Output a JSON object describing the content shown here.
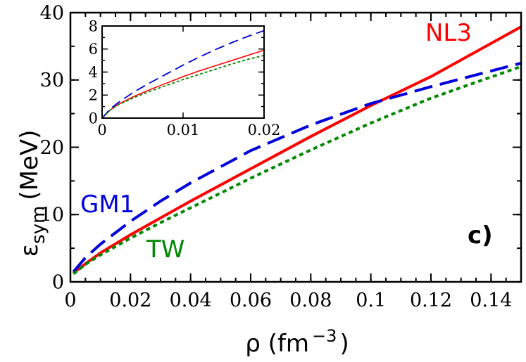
{
  "chart_data": [
    {
      "type": "line",
      "role": "main",
      "xlabel_base": "ρ (fm",
      "xlabel_exp": "−3",
      "xlabel_close": ")",
      "ylabel_base": "ε",
      "ylabel_sub": "sym",
      "ylabel_unit": "(MeV)",
      "xlim": [
        0,
        0.15
      ],
      "ylim": [
        0,
        40
      ],
      "xticks": [
        0,
        0.02,
        0.04,
        0.06,
        0.08,
        0.1,
        0.12,
        0.14
      ],
      "xtick_labels": [
        "0",
        "0.02",
        "0.04",
        "0.06",
        "0.08",
        "0.1",
        "0.12",
        "0.14"
      ],
      "yticks": [
        0,
        10,
        20,
        30,
        40
      ],
      "ytick_labels": [
        "0",
        "10",
        "20",
        "30",
        "40"
      ],
      "grid": false,
      "panel_label": "c)",
      "series": [
        {
          "name": "NL3",
          "color": "#ff0000",
          "style": "solid",
          "x": [
            0.001,
            0.005,
            0.01,
            0.02,
            0.03,
            0.04,
            0.06,
            0.08,
            0.1,
            0.12,
            0.15
          ],
          "y": [
            1.3,
            2.7,
            4.3,
            7.0,
            9.5,
            12.0,
            16.8,
            21.6,
            26.2,
            30.5,
            37.9
          ]
        },
        {
          "name": "GM1",
          "color": "#0000dd",
          "style": "dashed",
          "x": [
            0.001,
            0.005,
            0.01,
            0.02,
            0.03,
            0.04,
            0.06,
            0.08,
            0.1,
            0.12,
            0.15
          ],
          "y": [
            1.5,
            3.6,
            5.6,
            9.0,
            12.0,
            14.7,
            19.5,
            23.3,
            26.5,
            29.0,
            32.5
          ]
        },
        {
          "name": "TW",
          "color": "#008800",
          "style": "dotted",
          "x": [
            0.001,
            0.005,
            0.01,
            0.02,
            0.03,
            0.04,
            0.06,
            0.08,
            0.1,
            0.12,
            0.15
          ],
          "y": [
            1.2,
            2.6,
            4.0,
            6.5,
            8.8,
            11.0,
            15.4,
            19.6,
            23.6,
            27.3,
            32.0
          ]
        }
      ]
    },
    {
      "type": "line",
      "role": "inset",
      "xlim": [
        0,
        0.02
      ],
      "ylim": [
        0,
        8
      ],
      "xticks": [
        0,
        0.01,
        0.02
      ],
      "xtick_labels": [
        "0",
        "0.01",
        "0.02"
      ],
      "yticks": [
        0,
        2,
        4,
        6,
        8
      ],
      "ytick_labels": [
        "0",
        "2",
        "4",
        "6",
        "8"
      ],
      "grid": false,
      "series": [
        {
          "name": "NL3",
          "color": "#ff0000",
          "style": "solid",
          "x": [
            0,
            0.001,
            0.002,
            0.004,
            0.006,
            0.008,
            0.01,
            0.012,
            0.014,
            0.016,
            0.018,
            0.02
          ],
          "y": [
            0,
            0.7,
            1.2,
            1.9,
            2.5,
            3.05,
            3.6,
            4.1,
            4.55,
            5.0,
            5.45,
            5.9
          ]
        },
        {
          "name": "GM1",
          "color": "#0000dd",
          "style": "dashed",
          "x": [
            0,
            0.001,
            0.002,
            0.004,
            0.006,
            0.008,
            0.01,
            0.012,
            0.014,
            0.016,
            0.018,
            0.02
          ],
          "y": [
            0,
            0.8,
            1.35,
            2.3,
            3.1,
            3.85,
            4.6,
            5.3,
            5.95,
            6.55,
            7.1,
            7.6
          ]
        },
        {
          "name": "TW",
          "color": "#008800",
          "style": "dotted",
          "x": [
            0,
            0.001,
            0.002,
            0.004,
            0.006,
            0.008,
            0.01,
            0.012,
            0.014,
            0.016,
            0.018,
            0.02
          ],
          "y": [
            0,
            0.7,
            1.15,
            1.8,
            2.35,
            2.85,
            3.35,
            3.8,
            4.25,
            4.7,
            5.1,
            5.45
          ]
        }
      ]
    }
  ]
}
